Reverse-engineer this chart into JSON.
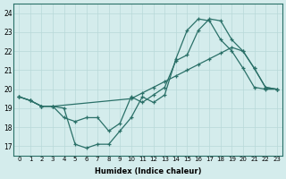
{
  "xlabel": "Humidex (Indice chaleur)",
  "bg_color": "#d4ecec",
  "line_color": "#2a7068",
  "xlim": [
    -0.5,
    23.5
  ],
  "ylim": [
    16.5,
    24.5
  ],
  "yticks": [
    17,
    18,
    19,
    20,
    21,
    22,
    23,
    24
  ],
  "xticks": [
    0,
    1,
    2,
    3,
    4,
    5,
    6,
    7,
    8,
    9,
    10,
    11,
    12,
    13,
    14,
    15,
    16,
    17,
    18,
    19,
    20,
    21,
    22,
    23
  ],
  "line1_x": [
    0,
    1,
    2,
    3,
    10,
    11,
    12,
    13,
    14,
    15,
    16,
    17,
    18,
    19,
    20,
    21,
    22,
    23
  ],
  "line1_y": [
    19.6,
    19.4,
    19.1,
    19.1,
    19.5,
    19.8,
    20.1,
    20.4,
    20.7,
    21.0,
    21.3,
    21.6,
    21.9,
    22.2,
    22.0,
    21.1,
    20.1,
    20.0
  ],
  "line2_x": [
    0,
    1,
    2,
    3,
    4,
    5,
    6,
    7,
    8,
    9,
    10,
    11,
    12,
    13,
    14,
    15,
    16,
    17,
    18,
    19,
    20,
    21,
    22,
    23
  ],
  "line2_y": [
    19.6,
    19.4,
    19.1,
    19.1,
    19.0,
    17.1,
    16.9,
    17.1,
    17.1,
    17.8,
    18.5,
    19.6,
    19.3,
    19.7,
    21.6,
    23.1,
    23.7,
    23.6,
    22.6,
    22.0,
    21.1,
    20.1,
    20.0,
    20.0
  ],
  "line3_x": [
    0,
    1,
    2,
    3,
    4,
    5,
    6,
    7,
    8,
    9,
    10,
    11,
    12,
    13,
    14,
    15,
    16,
    17,
    18,
    19,
    20,
    21,
    22,
    23
  ],
  "line3_y": [
    19.6,
    19.4,
    19.1,
    19.1,
    18.5,
    18.3,
    18.5,
    18.5,
    17.8,
    18.2,
    19.6,
    19.3,
    19.7,
    20.1,
    21.5,
    21.8,
    23.1,
    23.7,
    23.6,
    22.6,
    22.0,
    21.1,
    20.1,
    20.0
  ]
}
